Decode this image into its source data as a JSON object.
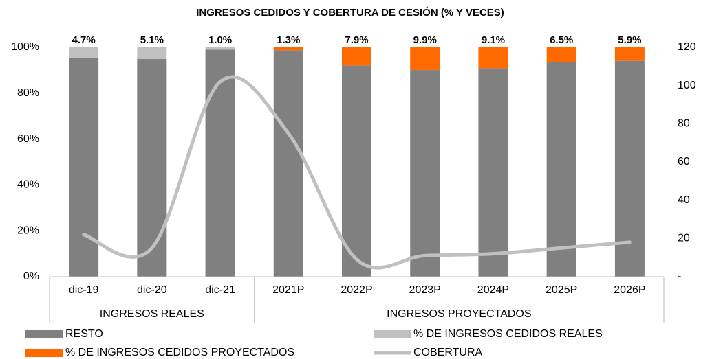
{
  "chart_data": {
    "type": "bar",
    "stacked": true,
    "title": "INGRESOS CEDIDOS Y COBERTURA DE CESIÓN (% Y VECES)",
    "categories": [
      "dic-19",
      "dic-20",
      "dic-21",
      "2021P",
      "2022P",
      "2023P",
      "2024P",
      "2025P",
      "2026P"
    ],
    "groups": [
      {
        "name": "INGRESOS REALES",
        "size": 3
      },
      {
        "name": "INGRESOS PROYECTADOS",
        "size": 6
      }
    ],
    "series": [
      {
        "name": "RESTO",
        "color": "#808080",
        "values": [
          95.3,
          94.9,
          99.0,
          98.7,
          92.1,
          90.1,
          90.9,
          93.5,
          94.1
        ]
      },
      {
        "name": "% DE INGRESOS CEDIDOS REALES",
        "color": "#c0c0c0",
        "values": [
          4.7,
          5.1,
          1.0,
          null,
          null,
          null,
          null,
          null,
          null
        ],
        "value_labels": [
          "4.7%",
          "5.1%",
          "1.0%",
          null,
          null,
          null,
          null,
          null,
          null
        ]
      },
      {
        "name": "% DE INGRESOS CEDIDOS PROYECTADOS",
        "color": "#ff6a00",
        "values": [
          null,
          null,
          null,
          1.3,
          7.9,
          9.9,
          9.1,
          6.5,
          5.9
        ],
        "value_labels": [
          null,
          null,
          null,
          "1.3%",
          "7.9%",
          "9.9%",
          "9.1%",
          "6.5%",
          "5.9%"
        ]
      },
      {
        "name": "COBERTURA",
        "type": "line",
        "axis": "y2",
        "color": "#c0c0c0",
        "values": [
          22,
          15,
          102,
          75,
          9,
          11,
          12,
          15,
          18
        ]
      }
    ],
    "ylim": [
      0,
      100
    ],
    "yticks": [
      {
        "value": 0,
        "label": "0%"
      },
      {
        "value": 20,
        "label": "20%"
      },
      {
        "value": 40,
        "label": "40%"
      },
      {
        "value": 60,
        "label": "60%"
      },
      {
        "value": 80,
        "label": "80%"
      },
      {
        "value": 100,
        "label": "100%"
      }
    ],
    "y2lim": [
      0,
      120
    ],
    "y2ticks": [
      {
        "value": 0,
        "label": "-"
      },
      20,
      40,
      60,
      80,
      100,
      120
    ],
    "grid": false
  }
}
